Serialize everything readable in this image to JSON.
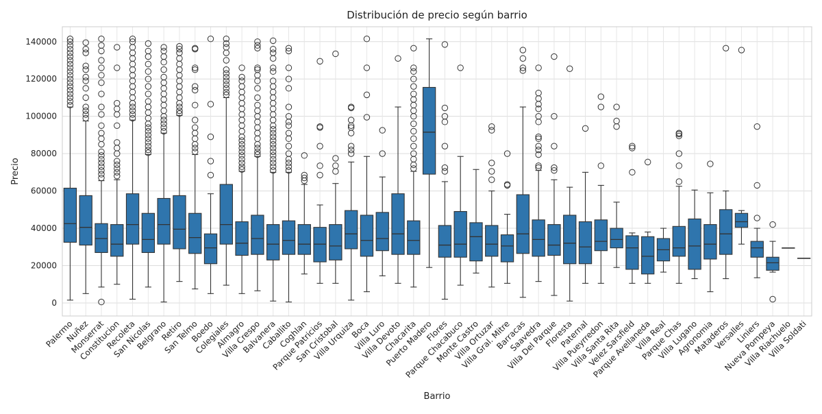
{
  "chart_data": {
    "type": "box",
    "title": "Distribución de precio según barrio",
    "xlabel": "Barrio",
    "ylabel": "Precio",
    "ylim": [
      -7000,
      148000
    ],
    "yticks": [
      0,
      20000,
      40000,
      60000,
      80000,
      100000,
      120000,
      140000
    ],
    "ytick_labels": [
      "0",
      "20000",
      "40000",
      "60000",
      "80000",
      "100000",
      "120000",
      "140000"
    ],
    "grid": true,
    "box_color": "#2f75ad",
    "edge_color": "#333333",
    "categories": [
      "Palermo",
      "Nuñez",
      "Monserrat",
      "Constitucion",
      "Recoleta",
      "San Nicolas",
      "Belgrano",
      "Retiro",
      "San Telmo",
      "Boedo",
      "Colegiales",
      "Almagro",
      "Villa Crespo",
      "Balvanera",
      "Caballito",
      "Coghlan",
      "Parque Patricios",
      "San Cristobal",
      "Villa Urquiza",
      "Boca",
      "Villa Luro",
      "Villa Devoto",
      "Chacarita",
      "Puerto Madero",
      "Flores",
      "Parque Chacabuco",
      "Monte Castro",
      "Villa Ortuzar",
      "Villa Gral. Mitre",
      "Barracas",
      "Saavedra",
      "Villa Del Parque",
      "Floresta",
      "Paternal",
      "Villa Pueyrredon",
      "Villa Santa Rita",
      "Velez Sarsfield",
      "Parque Avellaneda",
      "Villa Real",
      "Parque Chas",
      "Villa Lugano",
      "Agronomia",
      "Mataderos",
      "Versalles",
      "Liniers",
      "Nueva Pompeya",
      "Villa Riachuelo",
      "Villa Soldati"
    ],
    "boxes": [
      {
        "name": "Palermo",
        "whislo": 1500,
        "q1": 32500,
        "med": 42500,
        "q3": 61500,
        "whishi": 105000,
        "fliers": [
          106000,
          108000,
          110000,
          112000,
          114000,
          116000,
          118000,
          120000,
          122000,
          124000,
          126000,
          128000,
          130000,
          132000,
          134000,
          136000,
          138000,
          140000,
          141500
        ]
      },
      {
        "name": "Nuñez",
        "whislo": 5000,
        "q1": 31000,
        "med": 40500,
        "q3": 57500,
        "whishi": 97500,
        "fliers": [
          99000,
          101000,
          103000,
          105000,
          110000,
          115000,
          119000,
          121000,
          125000,
          127000,
          134000,
          136000,
          139500
        ]
      },
      {
        "name": "Monserrat",
        "whislo": 8500,
        "q1": 27000,
        "med": 34500,
        "q3": 42500,
        "whishi": 65500,
        "fliers": [
          500,
          67000,
          69000,
          71000,
          73000,
          75000,
          77000,
          79000,
          81000,
          85000,
          88000,
          91000,
          95000,
          101000,
          105000,
          112000,
          118000,
          122000,
          126000,
          130000,
          135000,
          138000,
          141500
        ]
      },
      {
        "name": "Constitucion",
        "whislo": 10000,
        "q1": 25000,
        "med": 31500,
        "q3": 42000,
        "whishi": 66000,
        "fliers": [
          68000,
          70000,
          72000,
          74000,
          76000,
          80000,
          83000,
          86000,
          95000,
          101000,
          104000,
          107000,
          126000,
          137000
        ]
      },
      {
        "name": "Recoleta",
        "whislo": 2000,
        "q1": 31500,
        "med": 42000,
        "q3": 58500,
        "whishi": 98000,
        "fliers": [
          99000,
          101000,
          103000,
          105000,
          107000,
          110000,
          113000,
          116000,
          119000,
          122000,
          125000,
          128000,
          131000,
          134000,
          137000,
          140000,
          141500
        ]
      },
      {
        "name": "San Nicolas",
        "whislo": 8500,
        "q1": 27000,
        "med": 34000,
        "q3": 48000,
        "whishi": 79500,
        "fliers": [
          80500,
          82000,
          84000,
          86000,
          88000,
          90000,
          92000,
          94000,
          96000,
          99000,
          102000,
          105000,
          108000,
          112000,
          116000,
          120000,
          124000,
          128000,
          132000,
          135000,
          139000
        ]
      },
      {
        "name": "Belgrano",
        "whislo": 500,
        "q1": 31500,
        "med": 42000,
        "q3": 56000,
        "whishi": 91000,
        "fliers": [
          92000,
          94000,
          96000,
          98000,
          100000,
          103000,
          106000,
          109000,
          112000,
          115000,
          118000,
          121000,
          125000,
          129000,
          132000,
          135000,
          137000
        ]
      },
      {
        "name": "Retiro",
        "whislo": 11500,
        "q1": 29000,
        "med": 39500,
        "q3": 57500,
        "whishi": 100500,
        "fliers": [
          101500,
          103000,
          105000,
          107000,
          110000,
          113000,
          116000,
          119000,
          122000,
          125000,
          128000,
          131000,
          134000,
          136000,
          137500
        ]
      },
      {
        "name": "San Telmo",
        "whislo": 7500,
        "q1": 26500,
        "med": 35000,
        "q3": 48000,
        "whishi": 79500,
        "fliers": [
          81000,
          83000,
          85000,
          88000,
          91000,
          94000,
          98000,
          106000,
          114000,
          116000,
          125000,
          126000,
          136000,
          136500
        ]
      },
      {
        "name": "Boedo",
        "whislo": 5000,
        "q1": 21000,
        "med": 29500,
        "q3": 37000,
        "whishi": 58500,
        "fliers": [
          68500,
          76000,
          89000,
          106500,
          141500
        ]
      },
      {
        "name": "Colegiales",
        "whislo": 9500,
        "q1": 31500,
        "med": 42000,
        "q3": 63500,
        "whishi": 110000,
        "fliers": [
          111500,
          113000,
          115000,
          117000,
          119000,
          121000,
          123000,
          125000,
          130000,
          134000,
          137000,
          139000,
          141500
        ]
      },
      {
        "name": "Almagro",
        "whislo": 5000,
        "q1": 25500,
        "med": 32000,
        "q3": 43500,
        "whishi": 70500,
        "fliers": [
          71500,
          73000,
          75000,
          77000,
          79000,
          81000,
          83000,
          85000,
          87000,
          89000,
          92000,
          95000,
          98000,
          101000,
          104000,
          107000,
          110000,
          113000,
          116000,
          119000,
          121000,
          126000
        ]
      },
      {
        "name": "Villa Crespo",
        "whislo": 6500,
        "q1": 26000,
        "med": 34500,
        "q3": 47000,
        "whishi": 78500,
        "fliers": [
          79500,
          81000,
          83000,
          85000,
          88000,
          91000,
          94000,
          97000,
          100000,
          103000,
          106000,
          110000,
          115000,
          119000,
          122000,
          125000,
          126000,
          136500,
          138000,
          140000
        ]
      },
      {
        "name": "Balvanera",
        "whislo": 1000,
        "q1": 23000,
        "med": 31500,
        "q3": 42000,
        "whishi": 70000,
        "fliers": [
          71000,
          73000,
          75000,
          77000,
          79000,
          81000,
          83000,
          85000,
          87000,
          89000,
          91000,
          93000,
          95000,
          98000,
          101000,
          104000,
          107000,
          110000,
          113000,
          116000,
          119000,
          124000,
          126000,
          131000,
          134000,
          136000,
          140500
        ]
      },
      {
        "name": "Caballito",
        "whislo": 500,
        "q1": 26000,
        "med": 33500,
        "q3": 44000,
        "whishi": 70000,
        "fliers": [
          71000,
          73000,
          75000,
          77000,
          80000,
          84000,
          88000,
          91000,
          95000,
          97000,
          100000,
          105000,
          115000,
          120000,
          126000,
          135000,
          136500
        ]
      },
      {
        "name": "Coghlan",
        "whislo": 15500,
        "q1": 26000,
        "med": 31500,
        "q3": 42000,
        "whishi": 63500,
        "fliers": [
          65500,
          67000,
          68500,
          79000
        ]
      },
      {
        "name": "Parque Patricios",
        "whislo": 10500,
        "q1": 22000,
        "med": 31500,
        "q3": 40500,
        "whishi": 52500,
        "fliers": [
          68500,
          73500,
          84000,
          94000,
          94500,
          129500
        ]
      },
      {
        "name": "San Cristobal",
        "whislo": 10500,
        "q1": 23000,
        "med": 30500,
        "q3": 42000,
        "whishi": 64000,
        "fliers": [
          70500,
          73500,
          77500,
          133500
        ]
      },
      {
        "name": "Villa Urquiza",
        "whislo": 1500,
        "q1": 29000,
        "med": 37000,
        "q3": 49500,
        "whishi": 75500,
        "fliers": [
          80000,
          82000,
          84000,
          91000,
          94000,
          95000,
          98000,
          104500,
          105000
        ]
      },
      {
        "name": "Boca",
        "whislo": 6000,
        "q1": 25000,
        "med": 33500,
        "q3": 47000,
        "whishi": 78500,
        "fliers": [
          99500,
          111500,
          126000,
          141500
        ]
      },
      {
        "name": "Villa Luro",
        "whislo": 14500,
        "q1": 28000,
        "med": 34500,
        "q3": 48500,
        "whishi": 67500,
        "fliers": [
          80000,
          92500
        ]
      },
      {
        "name": "Villa Devoto",
        "whislo": 10500,
        "q1": 26000,
        "med": 37000,
        "q3": 58500,
        "whishi": 105000,
        "fliers": [
          131000
        ]
      },
      {
        "name": "Chacarita",
        "whislo": 8500,
        "q1": 26000,
        "med": 33500,
        "q3": 44000,
        "whishi": 70500,
        "fliers": [
          72000,
          74000,
          77000,
          80000,
          84000,
          88000,
          92000,
          96000,
          100000,
          103000,
          106000,
          109000,
          112000,
          116000,
          120000,
          124000,
          126000,
          136500
        ]
      },
      {
        "name": "Puerto Madero",
        "whislo": 19000,
        "q1": 69000,
        "med": 91500,
        "q3": 115500,
        "whishi": 141500,
        "fliers": []
      },
      {
        "name": "Flores",
        "whislo": 2000,
        "q1": 24500,
        "med": 31000,
        "q3": 41500,
        "whishi": 65000,
        "fliers": [
          70500,
          72500,
          84000,
          97000,
          100000,
          104500,
          138500
        ]
      },
      {
        "name": "Parque Chacabuco",
        "whislo": 9500,
        "q1": 24500,
        "med": 31500,
        "q3": 49000,
        "whishi": 78500,
        "fliers": [
          126000
        ]
      },
      {
        "name": "Monte Castro",
        "whislo": 16000,
        "q1": 22500,
        "med": 35500,
        "q3": 43000,
        "whishi": 71500,
        "fliers": []
      },
      {
        "name": "Villa Ortuzar",
        "whislo": 8500,
        "q1": 25000,
        "med": 31500,
        "q3": 41500,
        "whishi": 60000,
        "fliers": [
          66000,
          70500,
          75000,
          92500,
          94500
        ]
      },
      {
        "name": "Villa Gral. Mitre",
        "whislo": 10500,
        "q1": 22000,
        "med": 30500,
        "q3": 36500,
        "whishi": 47500,
        "fliers": [
          63000,
          63500,
          80000
        ]
      },
      {
        "name": "Barracas",
        "whislo": 3000,
        "q1": 26500,
        "med": 37000,
        "q3": 58000,
        "whishi": 105000,
        "fliers": [
          124500,
          126000,
          131000,
          135500
        ]
      },
      {
        "name": "Saavedra",
        "whislo": 11500,
        "q1": 25000,
        "med": 34000,
        "q3": 44500,
        "whishi": 71000,
        "fliers": [
          72500,
          73500,
          79500,
          82000,
          84000,
          88000,
          89000,
          97000,
          100000,
          104000,
          106500,
          109500,
          112500,
          126000
        ]
      },
      {
        "name": "Villa Del Parque",
        "whislo": 4000,
        "q1": 25500,
        "med": 31000,
        "q3": 42000,
        "whishi": 66000,
        "fliers": [
          71000,
          72500,
          84000,
          100000,
          132000
        ]
      },
      {
        "name": "Floresta",
        "whislo": 1000,
        "q1": 21000,
        "med": 32000,
        "q3": 47000,
        "whishi": 62000,
        "fliers": [
          125500
        ]
      },
      {
        "name": "Paternal",
        "whislo": 10500,
        "q1": 21000,
        "med": 30000,
        "q3": 43500,
        "whishi": 70000,
        "fliers": [
          93500
        ]
      },
      {
        "name": "Villa Pueyrredon",
        "whislo": 10500,
        "q1": 28000,
        "med": 33000,
        "q3": 44500,
        "whishi": 63000,
        "fliers": [
          73500,
          105000,
          110500
        ]
      },
      {
        "name": "Villa Santa Rita",
        "whislo": 19000,
        "q1": 29500,
        "med": 34000,
        "q3": 40000,
        "whishi": 54000,
        "fliers": [
          94500,
          97500,
          105000
        ]
      },
      {
        "name": "Velez Sarsfield",
        "whislo": 10500,
        "q1": 18000,
        "med": 29500,
        "q3": 36000,
        "whishi": 37500,
        "fliers": [
          70000,
          83000,
          84000
        ]
      },
      {
        "name": "Parque Avellaneda",
        "whislo": 10500,
        "q1": 15500,
        "med": 25000,
        "q3": 35500,
        "whishi": 38000,
        "fliers": [
          75500
        ]
      },
      {
        "name": "Villa Real",
        "whislo": 16500,
        "q1": 22500,
        "med": 28500,
        "q3": 34500,
        "whishi": 40000,
        "fliers": []
      },
      {
        "name": "Parque Chas",
        "whislo": 10500,
        "q1": 25000,
        "med": 29500,
        "q3": 41000,
        "whishi": 62500,
        "fliers": [
          65000,
          73500,
          80000,
          89500,
          90500,
          91000
        ]
      },
      {
        "name": "Villa Lugano",
        "whislo": 13000,
        "q1": 18000,
        "med": 30500,
        "q3": 45000,
        "whishi": 60500,
        "fliers": []
      },
      {
        "name": "Agronomia",
        "whislo": 6000,
        "q1": 23500,
        "med": 31500,
        "q3": 42000,
        "whishi": 59000,
        "fliers": [
          74500
        ]
      },
      {
        "name": "Mataderos",
        "whislo": 13000,
        "q1": 26000,
        "med": 37000,
        "q3": 50000,
        "whishi": 60000,
        "fliers": [
          136500
        ]
      },
      {
        "name": "Versalles",
        "whislo": 31500,
        "q1": 40500,
        "med": 43500,
        "q3": 48000,
        "whishi": 49500,
        "fliers": [
          135500
        ]
      },
      {
        "name": "Liniers",
        "whislo": 13500,
        "q1": 24500,
        "med": 29500,
        "q3": 33000,
        "whishi": 40000,
        "fliers": [
          45500,
          63000,
          94500
        ]
      },
      {
        "name": "Nueva Pompeya",
        "whislo": 16500,
        "q1": 17500,
        "med": 21500,
        "q3": 24500,
        "whishi": 33000,
        "fliers": [
          2000,
          42000
        ]
      },
      {
        "name": "Villa Riachuelo",
        "whislo": 29500,
        "q1": 29500,
        "med": 29500,
        "q3": 29500,
        "whishi": 29500,
        "fliers": []
      },
      {
        "name": "Villa Soldati",
        "whislo": 24000,
        "q1": 24000,
        "med": 24000,
        "q3": 24000,
        "whishi": 24000,
        "fliers": []
      }
    ]
  }
}
